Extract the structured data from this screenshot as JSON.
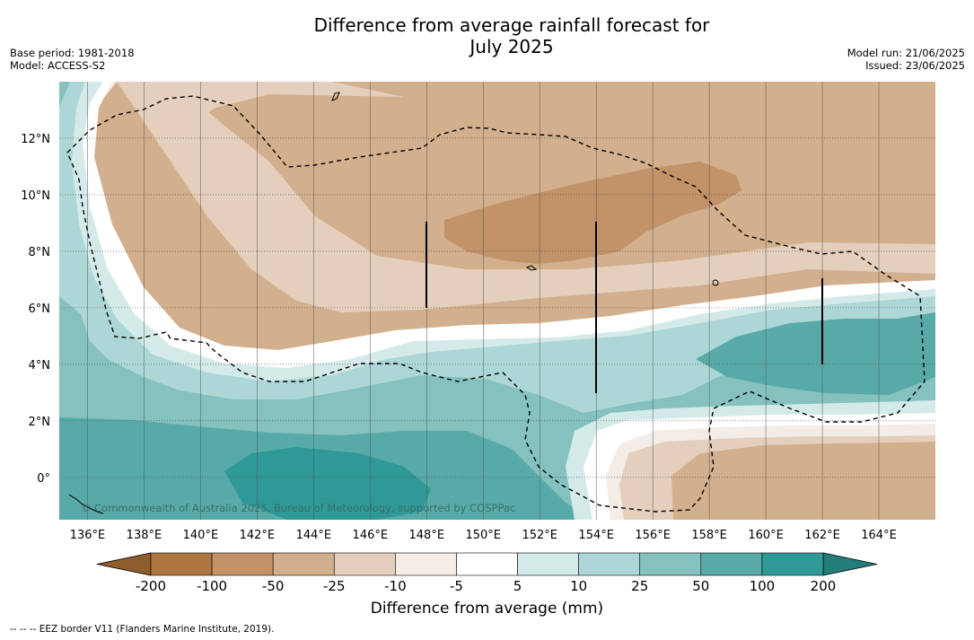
{
  "title": {
    "line1": "Difference from average rainfall forecast for",
    "line2": "July 2025"
  },
  "meta_left": {
    "base_period": "Base period: 1981-2018",
    "model": "Model: ACCESS-S2"
  },
  "meta_right": {
    "model_run": "Model run: 21/06/2025",
    "issued": "Issued: 23/06/2025"
  },
  "map": {
    "copyright": "© Commonwealth of Australia 2025, Bureau of Meteorology, supported by COSPPac",
    "lon_labels": [
      "136°E",
      "138°E",
      "140°E",
      "142°E",
      "144°E",
      "146°E",
      "148°E",
      "150°E",
      "152°E",
      "154°E",
      "156°E",
      "158°E",
      "160°E",
      "162°E",
      "164°E"
    ],
    "lat_labels": [
      "12°N",
      "10°N",
      "8°N",
      "6°N",
      "4°N",
      "2°N",
      "0°"
    ],
    "extent": {
      "lon_min": 135.0,
      "lon_max": 166.0,
      "lat_min": -1.5,
      "lat_max": 14.0
    }
  },
  "colorbar": {
    "title": "Difference from average (mm)",
    "tick_labels": [
      "-200",
      "-100",
      "-50",
      "-25",
      "-10",
      "-5",
      "5",
      "10",
      "25",
      "50",
      "100",
      "200"
    ],
    "colors": [
      "#8f5c2c",
      "#ae773f",
      "#c29268",
      "#d2af8d",
      "#e4cfbd",
      "#f4ece6",
      "#ffffff",
      "#d4eae9",
      "#add7d6",
      "#84c1bf",
      "#58aaa8",
      "#2e9996",
      "#237d7a"
    ]
  },
  "footnote": "--  --  -- EEZ border V11 (Flanders Marine Institute, 2019)."
}
